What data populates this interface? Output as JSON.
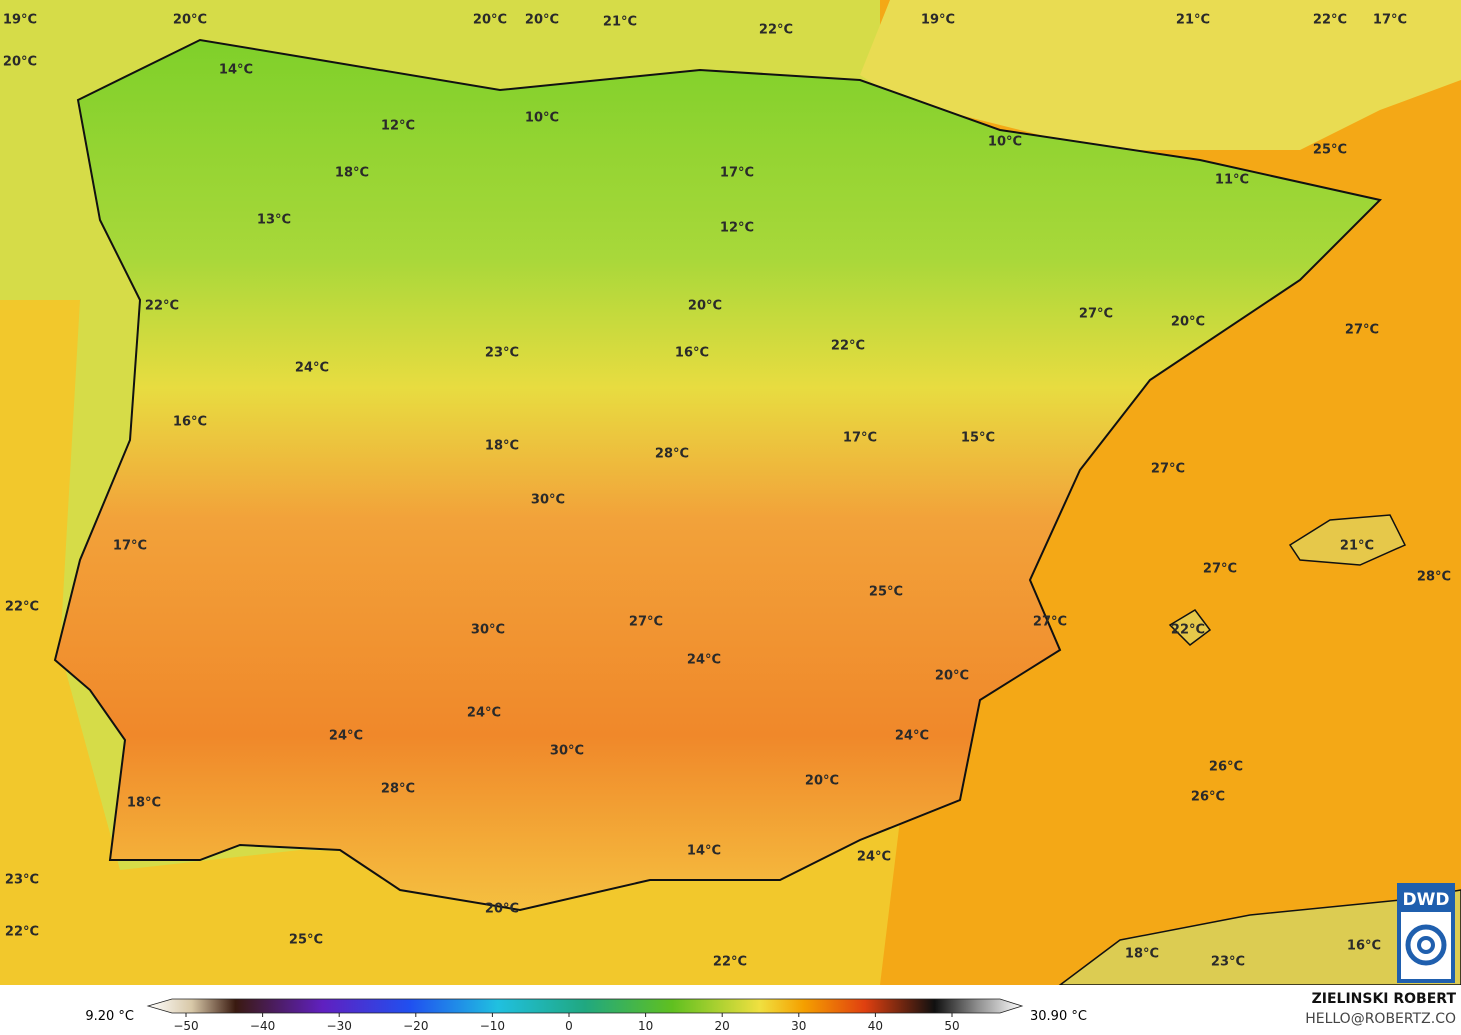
{
  "map": {
    "labels": [
      "19°C",
      "20°C",
      "20°C",
      "20°C",
      "21°C",
      "22°C",
      "19°C",
      "21°C",
      "22°C",
      "17°C",
      "20°C",
      "14°C",
      "12°C",
      "10°C",
      "10°C",
      "25°C",
      "18°C",
      "17°C",
      "11°C",
      "13°C",
      "12°C",
      "22°C",
      "20°C",
      "27°C",
      "20°C",
      "27°C",
      "22°C",
      "23°C",
      "16°C",
      "24°C",
      "16°C",
      "17°C",
      "15°C",
      "18°C",
      "28°C",
      "27°C",
      "30°C",
      "17°C",
      "21°C",
      "27°C",
      "28°C",
      "25°C",
      "22°C",
      "27°C",
      "27°C",
      "30°C",
      "22°C",
      "24°C",
      "20°C",
      "24°C",
      "24°C",
      "24°C",
      "30°C",
      "26°C",
      "20°C",
      "28°C",
      "26°C",
      "18°C",
      "14°C",
      "24°C",
      "23°C",
      "20°C",
      "22°C",
      "25°C",
      "18°C",
      "23°C",
      "16°C",
      "22°C"
    ]
  },
  "colorbar": {
    "min": "9.20 °C",
    "max": "30.90 °C",
    "ticks": [
      "−50",
      "−40",
      "−30",
      "−20",
      "−10",
      "0",
      "10",
      "20",
      "30",
      "40",
      "50"
    ]
  },
  "credit": {
    "author": "ZIELINSKI ROBERT",
    "contact": "HELLO@ROBERTZ.CO"
  },
  "logo": {
    "text": "DWD"
  }
}
